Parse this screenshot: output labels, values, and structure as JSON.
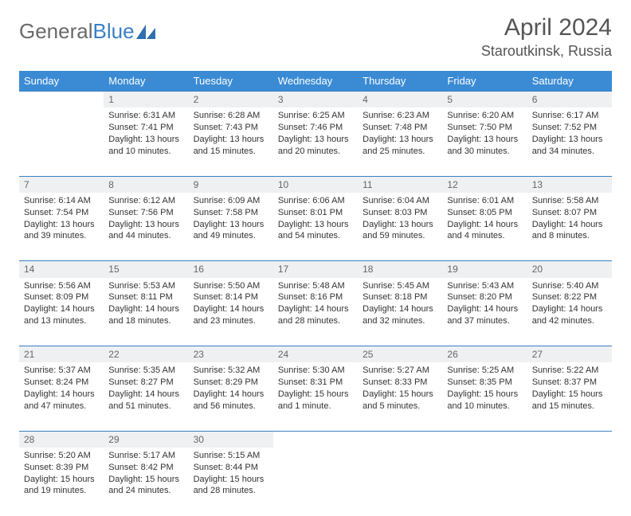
{
  "brand": {
    "part1": "General",
    "part2": "Blue"
  },
  "title": "April 2024",
  "location": "Staroutkinsk, Russia",
  "colors": {
    "header_bg": "#3b8bd4",
    "header_text": "#ffffff",
    "daynum_bg": "#eef0f2",
    "rule": "#3b7fc4",
    "text": "#333333"
  },
  "day_headers": [
    "Sunday",
    "Monday",
    "Tuesday",
    "Wednesday",
    "Thursday",
    "Friday",
    "Saturday"
  ],
  "weeks": [
    {
      "nums": [
        "",
        "1",
        "2",
        "3",
        "4",
        "5",
        "6"
      ],
      "cells": [
        null,
        {
          "sr": "Sunrise: 6:31 AM",
          "ss": "Sunset: 7:41 PM",
          "dl": "Daylight: 13 hours and 10 minutes."
        },
        {
          "sr": "Sunrise: 6:28 AM",
          "ss": "Sunset: 7:43 PM",
          "dl": "Daylight: 13 hours and 15 minutes."
        },
        {
          "sr": "Sunrise: 6:25 AM",
          "ss": "Sunset: 7:46 PM",
          "dl": "Daylight: 13 hours and 20 minutes."
        },
        {
          "sr": "Sunrise: 6:23 AM",
          "ss": "Sunset: 7:48 PM",
          "dl": "Daylight: 13 hours and 25 minutes."
        },
        {
          "sr": "Sunrise: 6:20 AM",
          "ss": "Sunset: 7:50 PM",
          "dl": "Daylight: 13 hours and 30 minutes."
        },
        {
          "sr": "Sunrise: 6:17 AM",
          "ss": "Sunset: 7:52 PM",
          "dl": "Daylight: 13 hours and 34 minutes."
        }
      ]
    },
    {
      "nums": [
        "7",
        "8",
        "9",
        "10",
        "11",
        "12",
        "13"
      ],
      "cells": [
        {
          "sr": "Sunrise: 6:14 AM",
          "ss": "Sunset: 7:54 PM",
          "dl": "Daylight: 13 hours and 39 minutes."
        },
        {
          "sr": "Sunrise: 6:12 AM",
          "ss": "Sunset: 7:56 PM",
          "dl": "Daylight: 13 hours and 44 minutes."
        },
        {
          "sr": "Sunrise: 6:09 AM",
          "ss": "Sunset: 7:58 PM",
          "dl": "Daylight: 13 hours and 49 minutes."
        },
        {
          "sr": "Sunrise: 6:06 AM",
          "ss": "Sunset: 8:01 PM",
          "dl": "Daylight: 13 hours and 54 minutes."
        },
        {
          "sr": "Sunrise: 6:04 AM",
          "ss": "Sunset: 8:03 PM",
          "dl": "Daylight: 13 hours and 59 minutes."
        },
        {
          "sr": "Sunrise: 6:01 AM",
          "ss": "Sunset: 8:05 PM",
          "dl": "Daylight: 14 hours and 4 minutes."
        },
        {
          "sr": "Sunrise: 5:58 AM",
          "ss": "Sunset: 8:07 PM",
          "dl": "Daylight: 14 hours and 8 minutes."
        }
      ]
    },
    {
      "nums": [
        "14",
        "15",
        "16",
        "17",
        "18",
        "19",
        "20"
      ],
      "cells": [
        {
          "sr": "Sunrise: 5:56 AM",
          "ss": "Sunset: 8:09 PM",
          "dl": "Daylight: 14 hours and 13 minutes."
        },
        {
          "sr": "Sunrise: 5:53 AM",
          "ss": "Sunset: 8:11 PM",
          "dl": "Daylight: 14 hours and 18 minutes."
        },
        {
          "sr": "Sunrise: 5:50 AM",
          "ss": "Sunset: 8:14 PM",
          "dl": "Daylight: 14 hours and 23 minutes."
        },
        {
          "sr": "Sunrise: 5:48 AM",
          "ss": "Sunset: 8:16 PM",
          "dl": "Daylight: 14 hours and 28 minutes."
        },
        {
          "sr": "Sunrise: 5:45 AM",
          "ss": "Sunset: 8:18 PM",
          "dl": "Daylight: 14 hours and 32 minutes."
        },
        {
          "sr": "Sunrise: 5:43 AM",
          "ss": "Sunset: 8:20 PM",
          "dl": "Daylight: 14 hours and 37 minutes."
        },
        {
          "sr": "Sunrise: 5:40 AM",
          "ss": "Sunset: 8:22 PM",
          "dl": "Daylight: 14 hours and 42 minutes."
        }
      ]
    },
    {
      "nums": [
        "21",
        "22",
        "23",
        "24",
        "25",
        "26",
        "27"
      ],
      "cells": [
        {
          "sr": "Sunrise: 5:37 AM",
          "ss": "Sunset: 8:24 PM",
          "dl": "Daylight: 14 hours and 47 minutes."
        },
        {
          "sr": "Sunrise: 5:35 AM",
          "ss": "Sunset: 8:27 PM",
          "dl": "Daylight: 14 hours and 51 minutes."
        },
        {
          "sr": "Sunrise: 5:32 AM",
          "ss": "Sunset: 8:29 PM",
          "dl": "Daylight: 14 hours and 56 minutes."
        },
        {
          "sr": "Sunrise: 5:30 AM",
          "ss": "Sunset: 8:31 PM",
          "dl": "Daylight: 15 hours and 1 minute."
        },
        {
          "sr": "Sunrise: 5:27 AM",
          "ss": "Sunset: 8:33 PM",
          "dl": "Daylight: 15 hours and 5 minutes."
        },
        {
          "sr": "Sunrise: 5:25 AM",
          "ss": "Sunset: 8:35 PM",
          "dl": "Daylight: 15 hours and 10 minutes."
        },
        {
          "sr": "Sunrise: 5:22 AM",
          "ss": "Sunset: 8:37 PM",
          "dl": "Daylight: 15 hours and 15 minutes."
        }
      ]
    },
    {
      "nums": [
        "28",
        "29",
        "30",
        "",
        "",
        "",
        ""
      ],
      "cells": [
        {
          "sr": "Sunrise: 5:20 AM",
          "ss": "Sunset: 8:39 PM",
          "dl": "Daylight: 15 hours and 19 minutes."
        },
        {
          "sr": "Sunrise: 5:17 AM",
          "ss": "Sunset: 8:42 PM",
          "dl": "Daylight: 15 hours and 24 minutes."
        },
        {
          "sr": "Sunrise: 5:15 AM",
          "ss": "Sunset: 8:44 PM",
          "dl": "Daylight: 15 hours and 28 minutes."
        },
        null,
        null,
        null,
        null
      ]
    }
  ]
}
